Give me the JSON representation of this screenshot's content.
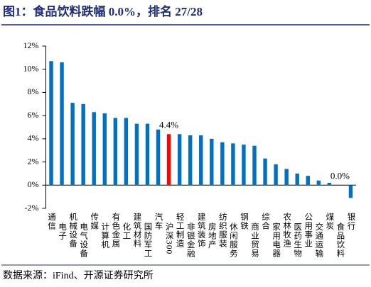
{
  "header": {
    "title": "图1：食品饮料跌幅 0.0%，排名 27/28"
  },
  "chart_data": {
    "type": "bar",
    "categories": [
      "通信",
      "电子",
      "机械设备",
      "电气设备",
      "传媒",
      "计算机",
      "有色金属",
      "化工",
      "建筑材料",
      "国防军工",
      "汽车",
      "沪深300",
      "轻工制造",
      "非银金融",
      "建筑装饰",
      "房地产",
      "纺织服装",
      "休闲服务",
      "钢铁",
      "商业贸易",
      "综合",
      "家用电器",
      "农林牧渔",
      "医药生物",
      "公用事业",
      "交通运输",
      "煤炭",
      "食品饮料",
      "银行"
    ],
    "values": [
      10.7,
      10.6,
      7.1,
      7.0,
      6.3,
      6.2,
      5.8,
      5.8,
      5.3,
      5.3,
      4.8,
      4.4,
      4.4,
      4.3,
      4.3,
      4.0,
      3.7,
      3.6,
      3.5,
      3.4,
      2.3,
      1.8,
      1.4,
      1.0,
      0.8,
      0.4,
      0.2,
      0.0,
      -1.1
    ],
    "value_labels": [
      null,
      null,
      null,
      null,
      null,
      null,
      null,
      null,
      null,
      null,
      null,
      "4.4%",
      null,
      null,
      null,
      null,
      null,
      null,
      null,
      null,
      null,
      null,
      null,
      null,
      null,
      null,
      null,
      "0.0%",
      null
    ],
    "colors": [
      "#0070c0",
      "#0070c0",
      "#0070c0",
      "#0070c0",
      "#0070c0",
      "#0070c0",
      "#0070c0",
      "#0070c0",
      "#0070c0",
      "#0070c0",
      "#0070c0",
      "#ff0000",
      "#0070c0",
      "#0070c0",
      "#0070c0",
      "#0070c0",
      "#0070c0",
      "#0070c0",
      "#0070c0",
      "#0070c0",
      "#0070c0",
      "#0070c0",
      "#0070c0",
      "#0070c0",
      "#0070c0",
      "#0070c0",
      "#0070c0",
      "#0070c0",
      "#0070c0"
    ],
    "ylim": [
      -2,
      12
    ],
    "yticks": [
      {
        "value": -2,
        "label": "-2%"
      },
      {
        "value": 0,
        "label": "0%"
      },
      {
        "value": 2,
        "label": "2%"
      },
      {
        "value": 4,
        "label": "4%"
      },
      {
        "value": 6,
        "label": "6%"
      },
      {
        "value": 8,
        "label": "8%"
      },
      {
        "value": 10,
        "label": "10%"
      },
      {
        "value": 12,
        "label": "12%"
      }
    ],
    "grid": false
  },
  "footer": {
    "source": "数据来源：iFind、开源证券研究所"
  }
}
